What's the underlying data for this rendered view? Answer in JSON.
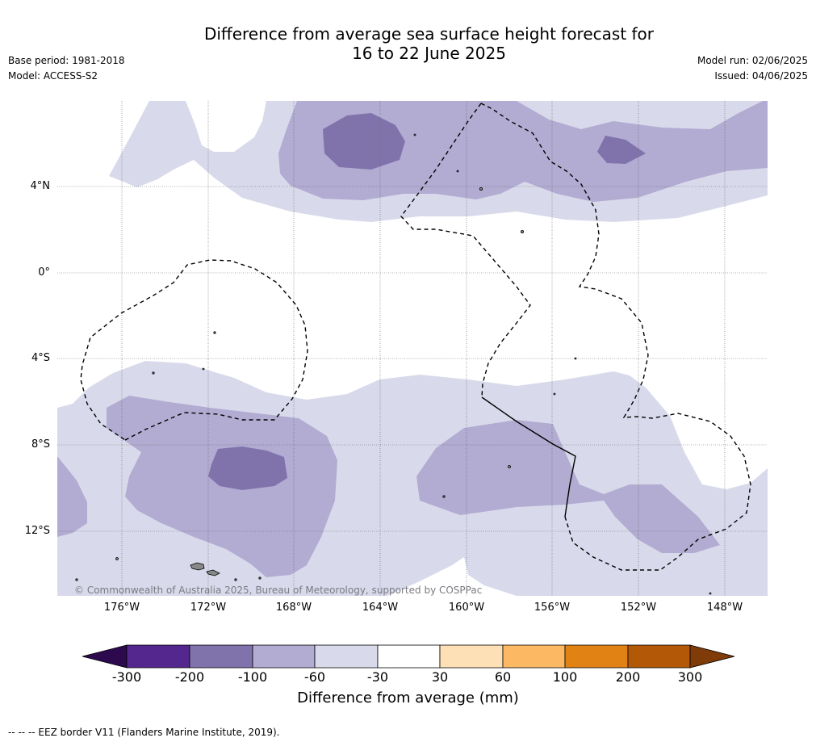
{
  "title_line1": "Difference from average sea surface height forecast for",
  "title_line2": "16 to 22 June 2025",
  "base_period": "Base period: 1981-2018",
  "model": "Model: ACCESS-S2",
  "model_run": "Model run: 02/06/2025",
  "issued": "Issued: 04/06/2025",
  "lat_ticks": [
    "4°N",
    "0°",
    "4°S",
    "8°S",
    "12°S"
  ],
  "lon_ticks": [
    "176°W",
    "172°W",
    "168°W",
    "164°W",
    "160°W",
    "156°W",
    "152°W",
    "148°W"
  ],
  "copyright": "© Commonwealth of Australia 2025, Bureau of Meteorology, supported by COSPPac",
  "colorbar": {
    "title": "Difference from average (mm)",
    "labels": [
      "-300",
      "-200",
      "-100",
      "-60",
      "-30",
      "30",
      "60",
      "100",
      "200",
      "300"
    ],
    "colors": [
      "#2d0a4e",
      "#54278f",
      "#8073ac",
      "#b2abd2",
      "#d8daeb",
      "#ffffff",
      "#fee0b6",
      "#fdb863",
      "#e08214",
      "#b35806",
      "#7f3b08"
    ]
  },
  "footnote": "-- -- -- EEZ border V11 (Flanders Marine Institute, 2019)."
}
